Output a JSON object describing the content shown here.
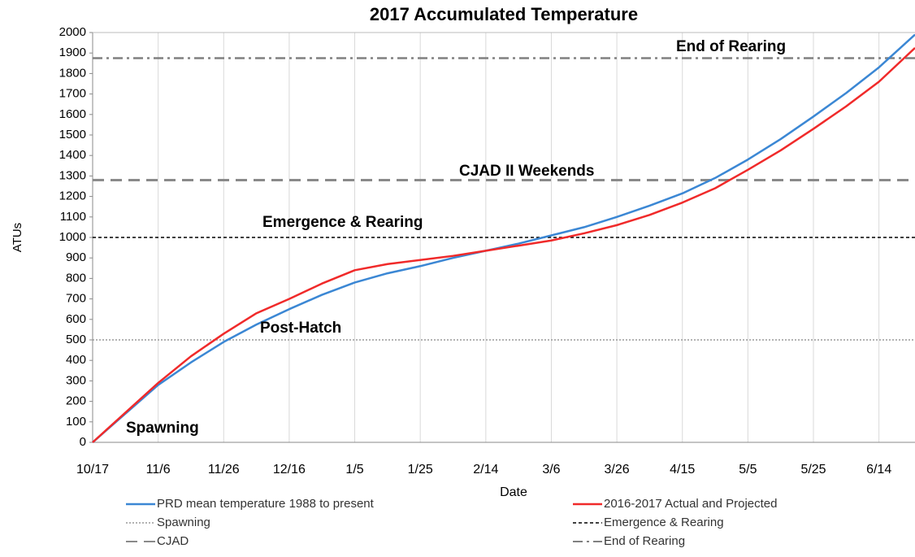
{
  "chart_data": {
    "type": "line",
    "title": "2017 Accumulated Temperature",
    "x_label": "Date",
    "y_label": "ATUs",
    "x": [
      0,
      10,
      20,
      30,
      40,
      50,
      60,
      70,
      80,
      90,
      100,
      110,
      120,
      130,
      140,
      150,
      160,
      170,
      180,
      190,
      200,
      210,
      220,
      230,
      240,
      251
    ],
    "series": [
      {
        "name": "PRD mean temperature 1988 to present",
        "color": "#3b87d4",
        "values": [
          0,
          140,
          280,
          390,
          490,
          575,
          650,
          720,
          780,
          825,
          860,
          900,
          935,
          970,
          1010,
          1050,
          1100,
          1155,
          1215,
          1290,
          1380,
          1480,
          1590,
          1705,
          1830,
          1990
        ]
      },
      {
        "name": "2016-2017 Actual and Projected",
        "color": "#f02a2a",
        "values": [
          0,
          145,
          290,
          420,
          530,
          630,
          700,
          775,
          840,
          870,
          890,
          910,
          935,
          960,
          985,
          1020,
          1060,
          1110,
          1170,
          1240,
          1330,
          1425,
          1530,
          1640,
          1760,
          1925
        ]
      }
    ],
    "reference_lines": [
      {
        "name": "Spawning",
        "value": 500,
        "color": "#9a9a9a",
        "style": "dotted"
      },
      {
        "name": "Emergence & Rearing",
        "value": 1000,
        "color": "#000000",
        "style": "dashed"
      },
      {
        "name": "CJAD",
        "value": 1280,
        "color": "#8a8a8a",
        "style": "long-dash"
      },
      {
        "name": "End of Rearing",
        "value": 1875,
        "color": "#808080",
        "style": "dash-dot"
      }
    ],
    "annotations": [
      "Spawning",
      "Post-Hatch",
      "Emergence & Rearing",
      "CJAD II Weekends",
      "End of Rearing"
    ],
    "xlim": [
      0,
      251
    ],
    "xticks": [
      {
        "value": 0,
        "label": "10/17"
      },
      {
        "value": 20,
        "label": "11/6"
      },
      {
        "value": 40,
        "label": "11/26"
      },
      {
        "value": 60,
        "label": "12/16"
      },
      {
        "value": 80,
        "label": "1/5"
      },
      {
        "value": 100,
        "label": "1/25"
      },
      {
        "value": 120,
        "label": "2/14"
      },
      {
        "value": 140,
        "label": "3/6"
      },
      {
        "value": 160,
        "label": "3/26"
      },
      {
        "value": 180,
        "label": "4/15"
      },
      {
        "value": 200,
        "label": "5/5"
      },
      {
        "value": 220,
        "label": "5/25"
      },
      {
        "value": 240,
        "label": "6/14"
      }
    ],
    "ylim": [
      0,
      2000
    ],
    "yticks": [
      0,
      100,
      200,
      300,
      400,
      500,
      600,
      700,
      800,
      900,
      1000,
      1100,
      1200,
      1300,
      1400,
      1500,
      1600,
      1700,
      1800,
      1900,
      2000
    ],
    "grid": "x"
  }
}
